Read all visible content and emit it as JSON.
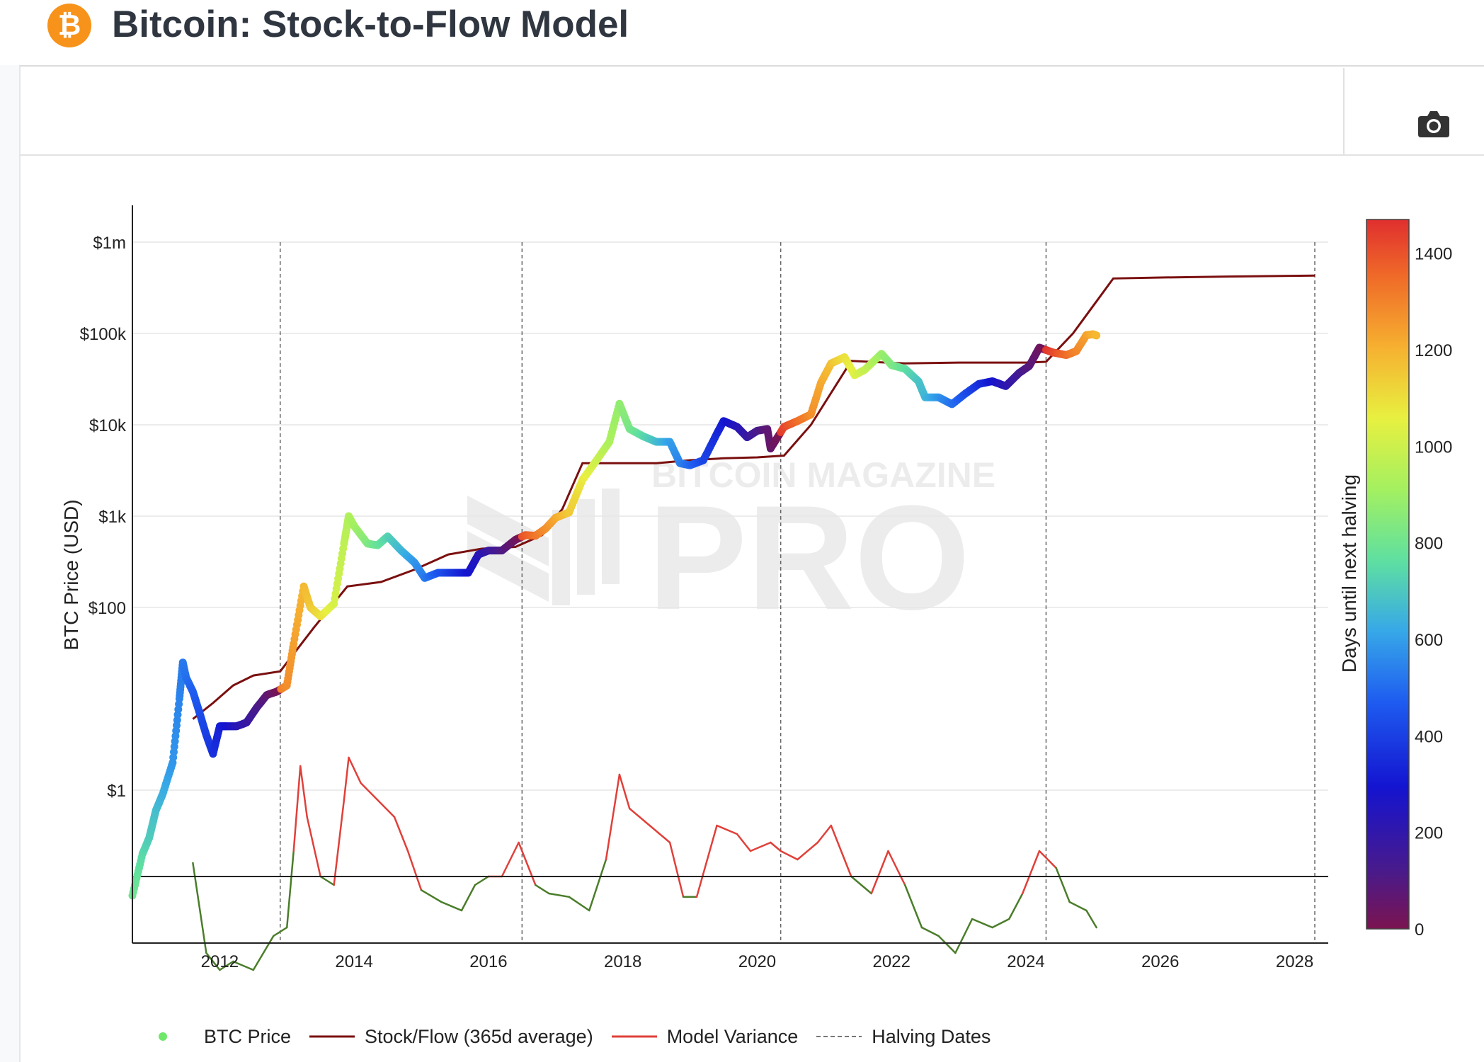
{
  "header": {
    "title": "Bitcoin: Stock-to-Flow Model",
    "logo_icon": "bitcoin-logo-icon",
    "logo_glyph": "₿"
  },
  "toolbar": {
    "camera_icon": "camera-icon"
  },
  "colors": {
    "s2f": "#7a0f0f",
    "variance_above": "#e0403a",
    "variance_below": "#4a7d2a",
    "halving": "#666666",
    "grid": "#e6e6e6"
  },
  "chart_data": {
    "type": "scatter",
    "y_scale": "log",
    "ylabel": "BTC Price (USD)",
    "y_ticks": [
      {
        "value": 1,
        "label": "$1"
      },
      {
        "value": 100,
        "label": "$100"
      },
      {
        "value": 1000,
        "label": "$1k"
      },
      {
        "value": 10000,
        "label": "$10k"
      },
      {
        "value": 100000,
        "label": "$100k"
      },
      {
        "value": 1000000,
        "label": "$1m"
      }
    ],
    "x_ticks": [
      "2012",
      "2014",
      "2016",
      "2018",
      "2020",
      "2022",
      "2024",
      "2026",
      "2028"
    ],
    "xlim": [
      2010.7,
      2028.5
    ],
    "colorbar": {
      "label": "Days until next halving",
      "range": [
        0,
        1470
      ],
      "ticks": [
        "0",
        "200",
        "400",
        "600",
        "800",
        "1000",
        "1200",
        "1400"
      ]
    },
    "halving_dates": [
      2012.9,
      2016.5,
      2020.35,
      2024.3,
      2028.3
    ],
    "series": [
      {
        "name": "BTC Price",
        "points": [
          [
            2010.7,
            0.07
          ],
          [
            2010.85,
            0.2
          ],
          [
            2010.95,
            0.3
          ],
          [
            2011.05,
            0.6
          ],
          [
            2011.15,
            0.9
          ],
          [
            2011.3,
            2
          ],
          [
            2011.4,
            10
          ],
          [
            2011.45,
            25
          ],
          [
            2011.5,
            17
          ],
          [
            2011.6,
            12
          ],
          [
            2011.7,
            7
          ],
          [
            2011.8,
            4
          ],
          [
            2011.9,
            2.5
          ],
          [
            2012.0,
            5
          ],
          [
            2012.1,
            5
          ],
          [
            2012.25,
            5
          ],
          [
            2012.4,
            5.5
          ],
          [
            2012.55,
            8
          ],
          [
            2012.7,
            11
          ],
          [
            2012.85,
            12
          ],
          [
            2013.0,
            14
          ],
          [
            2013.1,
            40
          ],
          [
            2013.25,
            170
          ],
          [
            2013.35,
            100
          ],
          [
            2013.5,
            80
          ],
          [
            2013.7,
            110
          ],
          [
            2013.85,
            500
          ],
          [
            2013.92,
            1000
          ],
          [
            2014.0,
            780
          ],
          [
            2014.2,
            500
          ],
          [
            2014.35,
            480
          ],
          [
            2014.5,
            600
          ],
          [
            2014.7,
            420
          ],
          [
            2014.9,
            310
          ],
          [
            2015.05,
            210
          ],
          [
            2015.25,
            240
          ],
          [
            2015.5,
            240
          ],
          [
            2015.7,
            240
          ],
          [
            2015.85,
            380
          ],
          [
            2016.0,
            420
          ],
          [
            2016.2,
            420
          ],
          [
            2016.4,
            550
          ],
          [
            2016.55,
            620
          ],
          [
            2016.7,
            610
          ],
          [
            2016.85,
            730
          ],
          [
            2017.0,
            960
          ],
          [
            2017.2,
            1100
          ],
          [
            2017.4,
            2500
          ],
          [
            2017.6,
            4000
          ],
          [
            2017.8,
            6500
          ],
          [
            2017.95,
            17000
          ],
          [
            2018.1,
            9000
          ],
          [
            2018.3,
            7500
          ],
          [
            2018.5,
            6500
          ],
          [
            2018.7,
            6500
          ],
          [
            2018.85,
            3800
          ],
          [
            2019.0,
            3600
          ],
          [
            2019.2,
            4100
          ],
          [
            2019.4,
            8000
          ],
          [
            2019.5,
            11000
          ],
          [
            2019.7,
            9500
          ],
          [
            2019.85,
            7300
          ],
          [
            2020.0,
            8600
          ],
          [
            2020.15,
            9000
          ],
          [
            2020.2,
            5500
          ],
          [
            2020.4,
            9500
          ],
          [
            2020.6,
            11000
          ],
          [
            2020.8,
            13000
          ],
          [
            2020.95,
            29000
          ],
          [
            2021.1,
            47000
          ],
          [
            2021.3,
            55000
          ],
          [
            2021.45,
            35000
          ],
          [
            2021.6,
            40000
          ],
          [
            2021.85,
            60000
          ],
          [
            2022.0,
            45000
          ],
          [
            2022.2,
            41000
          ],
          [
            2022.4,
            30000
          ],
          [
            2022.5,
            20000
          ],
          [
            2022.7,
            20000
          ],
          [
            2022.9,
            16800
          ],
          [
            2023.1,
            22000
          ],
          [
            2023.3,
            28000
          ],
          [
            2023.5,
            30000
          ],
          [
            2023.7,
            26500
          ],
          [
            2023.9,
            37000
          ],
          [
            2024.05,
            44000
          ],
          [
            2024.2,
            70000
          ],
          [
            2024.4,
            62000
          ],
          [
            2024.6,
            58000
          ],
          [
            2024.75,
            64000
          ],
          [
            2024.9,
            96000
          ],
          [
            2025.0,
            98000
          ],
          [
            2025.05,
            95000
          ]
        ]
      },
      {
        "name": "Stock/Flow (365d average)",
        "points": [
          [
            2011.6,
            6
          ],
          [
            2011.9,
            9
          ],
          [
            2012.2,
            14
          ],
          [
            2012.5,
            18
          ],
          [
            2012.9,
            20
          ],
          [
            2013.4,
            60
          ],
          [
            2013.9,
            170
          ],
          [
            2014.4,
            190
          ],
          [
            2014.9,
            260
          ],
          [
            2015.4,
            380
          ],
          [
            2015.9,
            440
          ],
          [
            2016.4,
            460
          ],
          [
            2016.8,
            620
          ],
          [
            2017.1,
            1200
          ],
          [
            2017.4,
            3800
          ],
          [
            2017.8,
            3800
          ],
          [
            2018.5,
            3800
          ],
          [
            2019.0,
            4100
          ],
          [
            2019.5,
            4300
          ],
          [
            2020.0,
            4400
          ],
          [
            2020.4,
            4600
          ],
          [
            2020.8,
            10000
          ],
          [
            2021.4,
            50000
          ],
          [
            2022.2,
            47000
          ],
          [
            2023.0,
            48000
          ],
          [
            2024.0,
            48000
          ],
          [
            2024.3,
            49000
          ],
          [
            2024.7,
            100000
          ],
          [
            2025.0,
            200000
          ],
          [
            2025.3,
            400000
          ],
          [
            2026.0,
            410000
          ],
          [
            2027.0,
            420000
          ],
          [
            2028.3,
            430000
          ]
        ]
      },
      {
        "name": "Model Variance",
        "points": [
          [
            2011.6,
            0.08
          ],
          [
            2011.8,
            -0.45
          ],
          [
            2012.0,
            -0.55
          ],
          [
            2012.2,
            -0.5
          ],
          [
            2012.5,
            -0.55
          ],
          [
            2012.8,
            -0.35
          ],
          [
            2013.0,
            -0.3
          ],
          [
            2013.1,
            0.15
          ],
          [
            2013.2,
            0.65
          ],
          [
            2013.3,
            0.35
          ],
          [
            2013.5,
            0.0
          ],
          [
            2013.7,
            -0.05
          ],
          [
            2013.85,
            0.45
          ],
          [
            2013.92,
            0.7
          ],
          [
            2014.1,
            0.55
          ],
          [
            2014.35,
            0.45
          ],
          [
            2014.6,
            0.35
          ],
          [
            2014.8,
            0.15
          ],
          [
            2015.0,
            -0.08
          ],
          [
            2015.3,
            -0.15
          ],
          [
            2015.6,
            -0.2
          ],
          [
            2015.8,
            -0.05
          ],
          [
            2016.0,
            0.0
          ],
          [
            2016.2,
            0.0
          ],
          [
            2016.45,
            0.2
          ],
          [
            2016.7,
            -0.05
          ],
          [
            2016.9,
            -0.1
          ],
          [
            2017.2,
            -0.12
          ],
          [
            2017.5,
            -0.2
          ],
          [
            2017.75,
            0.1
          ],
          [
            2017.95,
            0.6
          ],
          [
            2018.1,
            0.4
          ],
          [
            2018.4,
            0.3
          ],
          [
            2018.7,
            0.2
          ],
          [
            2018.9,
            -0.12
          ],
          [
            2019.1,
            -0.12
          ],
          [
            2019.4,
            0.3
          ],
          [
            2019.7,
            0.25
          ],
          [
            2019.9,
            0.15
          ],
          [
            2020.2,
            0.2
          ],
          [
            2020.35,
            0.15
          ],
          [
            2020.6,
            0.1
          ],
          [
            2020.9,
            0.2
          ],
          [
            2021.1,
            0.3
          ],
          [
            2021.4,
            0.0
          ],
          [
            2021.7,
            -0.1
          ],
          [
            2021.95,
            0.15
          ],
          [
            2022.2,
            -0.05
          ],
          [
            2022.45,
            -0.3
          ],
          [
            2022.7,
            -0.35
          ],
          [
            2022.95,
            -0.45
          ],
          [
            2023.2,
            -0.25
          ],
          [
            2023.5,
            -0.3
          ],
          [
            2023.75,
            -0.25
          ],
          [
            2023.95,
            -0.1
          ],
          [
            2024.2,
            0.15
          ],
          [
            2024.45,
            0.05
          ],
          [
            2024.65,
            -0.15
          ],
          [
            2024.9,
            -0.2
          ],
          [
            2025.05,
            -0.3
          ]
        ]
      },
      {
        "name": "Halving Dates"
      }
    ]
  }
}
